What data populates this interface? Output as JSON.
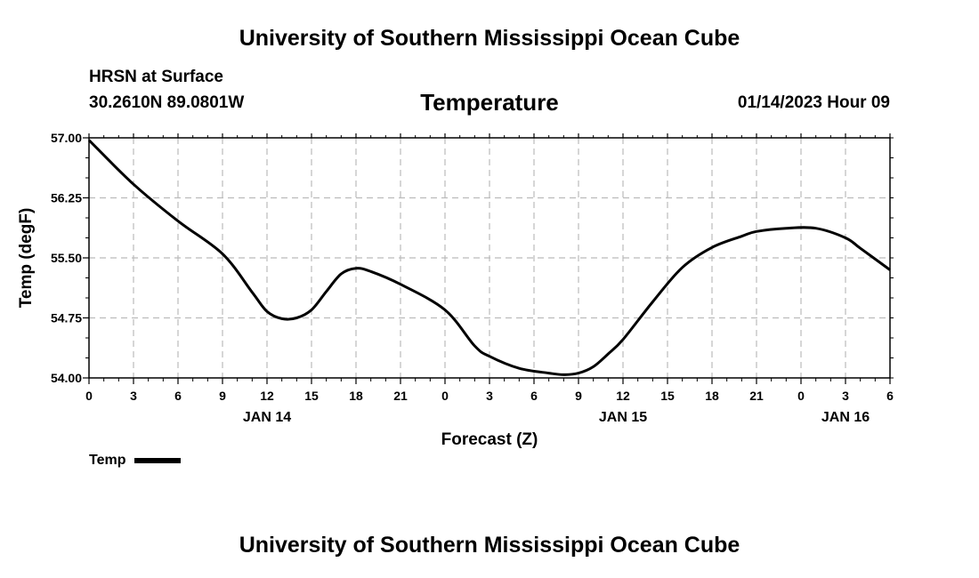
{
  "header": {
    "title": "University of Southern Mississippi Ocean Cube",
    "station": "HRSN at Surface",
    "coords": "30.2610N  89.0801W",
    "chart_title": "Temperature",
    "datetime": "01/14/2023 Hour 09"
  },
  "footer": {
    "title": "University of Southern Mississippi Ocean Cube"
  },
  "legend": {
    "label": "Temp",
    "color": "#000000"
  },
  "chart_data": {
    "type": "line",
    "title": "Temperature",
    "xlabel": "Forecast (Z)",
    "ylabel": "Temp (degF)",
    "ylim": [
      54.0,
      57.0
    ],
    "xlim": [
      0,
      54
    ],
    "x_unit": "forecast hours from 00Z JAN 14",
    "y_ticks": [
      "54.00",
      "54.75",
      "55.50",
      "56.25",
      "57.00"
    ],
    "y_tick_values": [
      54.0,
      54.75,
      55.5,
      56.25,
      57.0
    ],
    "x_tick_labels": [
      "0",
      "3",
      "6",
      "9",
      "12",
      "15",
      "18",
      "21",
      "0",
      "3",
      "6",
      "9",
      "12",
      "15",
      "18",
      "21",
      "0",
      "3",
      "6"
    ],
    "date_labels": [
      {
        "label": "JAN 14",
        "hour": 12
      },
      {
        "label": "JAN 15",
        "hour": 36
      },
      {
        "label": "JAN 16",
        "hour": 51
      }
    ],
    "grid": true,
    "series": [
      {
        "name": "Temp",
        "color": "#000000",
        "x": [
          0,
          3,
          6,
          9,
          11,
          12,
          13,
          14,
          15,
          16,
          17,
          18,
          19,
          21,
          24,
          26,
          27,
          29,
          31,
          32,
          33,
          34,
          35,
          36,
          38,
          40,
          42,
          44,
          45,
          47,
          49,
          51,
          52,
          54
        ],
        "values": [
          56.97,
          56.42,
          55.96,
          55.55,
          55.07,
          54.83,
          54.74,
          54.75,
          54.85,
          55.08,
          55.3,
          55.37,
          55.33,
          55.17,
          54.85,
          54.4,
          54.27,
          54.12,
          54.06,
          54.04,
          54.06,
          54.14,
          54.3,
          54.48,
          54.95,
          55.38,
          55.63,
          55.77,
          55.83,
          55.87,
          55.87,
          55.75,
          55.62,
          55.35
        ]
      }
    ]
  }
}
